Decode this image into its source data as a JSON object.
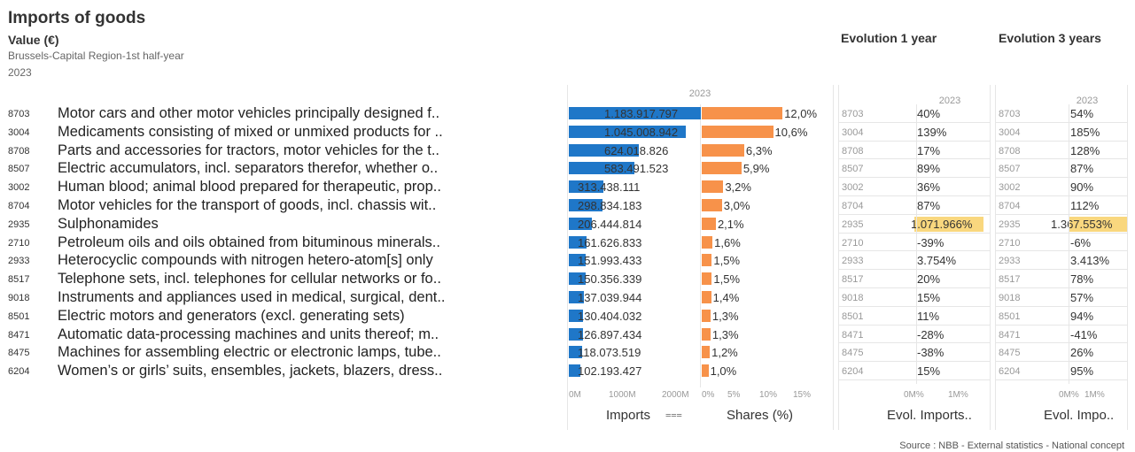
{
  "header": {
    "title": "Imports of goods",
    "subtitle": "Value (€)",
    "region": "Brussels-Capital Region-1st half-year",
    "period": "2023",
    "evol1_title": "Evolution 1 year",
    "evol3_title": "Evolution 3 years"
  },
  "chart_data": {
    "type": "bar",
    "year_label": "2023",
    "colors": {
      "imports": "#1f77c8",
      "shares": "#f7924a",
      "highlight": "#f9d77e"
    },
    "codes": [
      "8703",
      "3004",
      "8708",
      "8507",
      "3002",
      "8704",
      "2935",
      "2710",
      "2933",
      "8517",
      "9018",
      "8501",
      "8471",
      "8475",
      "6204"
    ],
    "categories": [
      "Motor cars and other motor vehicles principally designed f..",
      "Medicaments consisting of mixed or unmixed products for ..",
      "Parts and accessories for tractors, motor vehicles for the t..",
      "Electric accumulators, incl. separators therefor, whether o..",
      "Human blood; animal blood prepared for therapeutic, prop..",
      "Motor vehicles for the transport of goods, incl. chassis wit..",
      "Sulphonamides",
      "Petroleum oils and oils obtained from bituminous minerals..",
      "Heterocyclic compounds with nitrogen hetero-atom[s] only",
      "Telephone sets, incl. telephones for cellular networks or fo..",
      "Instruments and appliances used in medical, surgical, dent..",
      "Electric motors and generators (excl. generating sets)",
      "Automatic data-processing machines and units thereof; m..",
      "Machines for assembling electric or electronic lamps, tube..",
      "Women’s or girls’ suits, ensembles, jackets, blazers, dress.."
    ],
    "imports": {
      "values": [
        1183917797,
        1045008942,
        624018826,
        583491523,
        313438111,
        298834183,
        206444814,
        161626833,
        151993433,
        150356339,
        137039944,
        130404032,
        126897434,
        118073519,
        102193427
      ],
      "labels": [
        "1.183.917.797",
        "1.045.008.942",
        "624.018.826",
        "583.491.523",
        "313.438.111",
        "298.834.183",
        "206.444.814",
        "161.626.833",
        "151.993.433",
        "150.356.339",
        "137.039.944",
        "130.404.032",
        "126.897.434",
        "118.073.519",
        "102.193.427"
      ],
      "ticks": [
        "0M",
        "1000M",
        "2000M"
      ],
      "xlim": [
        0,
        2000000000
      ],
      "xlabel": "Imports"
    },
    "shares": {
      "values": [
        12.0,
        10.6,
        6.3,
        5.9,
        3.2,
        3.0,
        2.1,
        1.6,
        1.5,
        1.5,
        1.4,
        1.3,
        1.3,
        1.2,
        1.0
      ],
      "labels": [
        "12,0%",
        "10,6%",
        "6,3%",
        "5,9%",
        "3,2%",
        "3,0%",
        "2,1%",
        "1,6%",
        "1,5%",
        "1,5%",
        "1,4%",
        "1,3%",
        "1,3%",
        "1,2%",
        "1,0%"
      ],
      "ticks": [
        "0%",
        "5%",
        "10%",
        "15%"
      ],
      "xlim": [
        0,
        15
      ],
      "xlabel": "Shares (%)"
    },
    "evol1": {
      "values": [
        40,
        139,
        17,
        89,
        36,
        87,
        1071966,
        -39,
        3754,
        20,
        15,
        11,
        -28,
        -38,
        15
      ],
      "labels": [
        "40%",
        "139%",
        "17%",
        "89%",
        "36%",
        "87%",
        "1.071.966%",
        "-39%",
        "3.754%",
        "20%",
        "15%",
        "11%",
        "-28%",
        "-38%",
        "15%"
      ],
      "ticks": [
        "0M%",
        "1M%"
      ],
      "xlabel": "Evol. Imports.."
    },
    "evol3": {
      "values": [
        54,
        185,
        128,
        87,
        90,
        112,
        1367553,
        -6,
        3413,
        78,
        57,
        94,
        -41,
        26,
        95
      ],
      "labels": [
        "54%",
        "185%",
        "128%",
        "87%",
        "90%",
        "112%",
        "1.367.553%",
        "-6%",
        "3.413%",
        "78%",
        "57%",
        "94%",
        "-41%",
        "26%",
        "95%"
      ],
      "ticks": [
        "0M%",
        "1M%"
      ],
      "xlabel": "Evol. Impo.."
    }
  },
  "footer": {
    "source": "Source : NBB - External statistics - National concept"
  }
}
